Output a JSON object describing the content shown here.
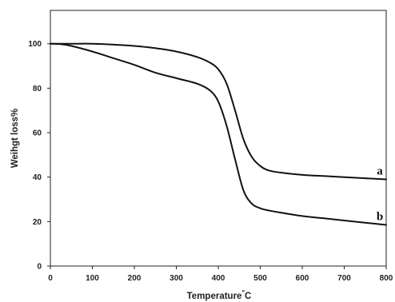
{
  "chart_data": {
    "type": "line",
    "title": "",
    "xlabel": "Temperature",
    "xlabel_unit": "°C",
    "ylabel": "Weihgt loss%",
    "xlim": [
      0,
      800
    ],
    "ylim": [
      0,
      115
    ],
    "xticks": [
      0,
      100,
      200,
      300,
      400,
      500,
      600,
      700,
      800
    ],
    "yticks": [
      0,
      20,
      40,
      60,
      80,
      100
    ],
    "grid": false,
    "legend": "none",
    "series": [
      {
        "name": "a",
        "color": "#111111",
        "x": [
          0,
          50,
          100,
          150,
          200,
          250,
          300,
          350,
          380,
          400,
          420,
          440,
          460,
          480,
          500,
          520,
          550,
          600,
          650,
          700,
          750,
          800
        ],
        "y": [
          100,
          100,
          100,
          99.6,
          99,
          98,
          96.5,
          94,
          91.5,
          88.5,
          82,
          70,
          57,
          49,
          45,
          43,
          42,
          41,
          40.5,
          40,
          39.5,
          39
        ]
      },
      {
        "name": "b",
        "color": "#111111",
        "x": [
          0,
          25,
          50,
          100,
          150,
          200,
          250,
          300,
          350,
          380,
          400,
          420,
          440,
          460,
          480,
          500,
          520,
          550,
          600,
          650,
          700,
          750,
          800
        ],
        "y": [
          100,
          99.8,
          99,
          96.5,
          93.5,
          90.5,
          87,
          84.5,
          82,
          79,
          74,
          63,
          48,
          34,
          28,
          26,
          25,
          24,
          22.5,
          21.5,
          20.5,
          19.5,
          18.5
        ]
      }
    ]
  }
}
